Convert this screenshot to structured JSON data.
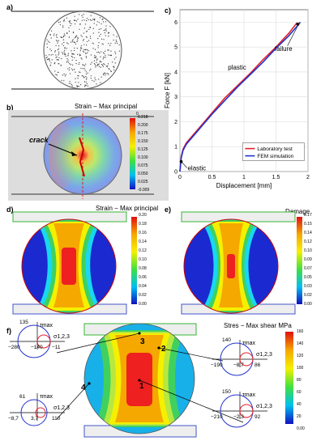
{
  "panels": {
    "a": "a)",
    "b": "b)",
    "c": "c)",
    "d": "d)",
    "e": "e)",
    "f": "f)"
  },
  "b": {
    "title": "Strain  − Max principal",
    "crack": "crack",
    "scale_head": "0",
    "scale_ticks": [
      "0.218",
      "0.200",
      "0.175",
      "0.150",
      "0.125",
      "0.100",
      "0.075",
      "0.050",
      "0.025",
      "-0.009"
    ]
  },
  "d": {
    "title": "Strain  − Max principal",
    "scale_ticks": [
      "0.20",
      "0.18",
      "0.16",
      "0.14",
      "0.12",
      "0.10",
      "0.08",
      "0.06",
      "0.04",
      "0.02",
      "0.00"
    ]
  },
  "e": {
    "title": "Damage",
    "scale_ticks": [
      "0.17",
      "0.15",
      "0.14",
      "0.12",
      "0.10",
      "0.09",
      "0.07",
      "0.05",
      "0.03",
      "0.02",
      "0.00"
    ]
  },
  "f": {
    "title": "Stres  − Max shear MPa",
    "scale_ticks": [
      "160",
      "140",
      "120",
      "100",
      "80",
      "60",
      "40",
      "20",
      "0.00"
    ],
    "points": [
      "1",
      "2",
      "3",
      "4"
    ],
    "mohr": [
      {
        "tau": "τmax",
        "top": "135",
        "left": "−280",
        "mid": "−140",
        "right": "−11",
        "sigma": "σ1,2,3"
      },
      {
        "tau": "τmax",
        "top": "140",
        "left": "−190",
        "mid": "−8,7",
        "right": "86",
        "sigma": "σ1,2,3"
      },
      {
        "tau": "τmax",
        "top": "61",
        "left": "−8,7",
        "mid": "3,7",
        "right": "110",
        "sigma": "σ1,2,3"
      },
      {
        "tau": "τmax",
        "top": "150",
        "left": "−210",
        "mid": "−2,3",
        "right": "92",
        "sigma": "σ1,2,3"
      }
    ]
  },
  "chart_data": {
    "type": "line",
    "xlabel": "Displacement [mm]",
    "ylabel": "Force F [kN]",
    "xlim": [
      0,
      2
    ],
    "ylim": [
      0,
      6.5
    ],
    "x_ticks": [
      0,
      0.5,
      1,
      1.5,
      2
    ],
    "y_ticks": [
      0,
      1,
      2,
      3,
      4,
      5,
      6
    ],
    "grid": true,
    "legend": "bottom-right",
    "annotations": [
      "elastic",
      "plastic",
      "failure"
    ],
    "series": [
      {
        "name": "Laboratory test",
        "color": "#e8202a",
        "x": [
          0,
          0.02,
          0.05,
          0.1,
          0.3,
          0.5,
          0.7,
          0.9,
          1.1,
          1.3,
          1.5,
          1.7,
          1.82,
          1.85
        ],
        "y": [
          0,
          0.6,
          0.9,
          1.15,
          1.75,
          2.35,
          2.95,
          3.45,
          3.95,
          4.5,
          5.0,
          5.55,
          5.95,
          5.85
        ]
      },
      {
        "name": "FEM simulation",
        "color": "#2233cc",
        "x": [
          0,
          0.02,
          0.05,
          0.1,
          0.3,
          0.5,
          0.7,
          0.9,
          1.1,
          1.3,
          1.5,
          1.7,
          1.85,
          1.88
        ],
        "y": [
          0,
          0.55,
          0.85,
          1.1,
          1.7,
          2.3,
          2.85,
          3.4,
          3.9,
          4.4,
          4.95,
          5.45,
          5.9,
          6.0
        ]
      }
    ]
  }
}
